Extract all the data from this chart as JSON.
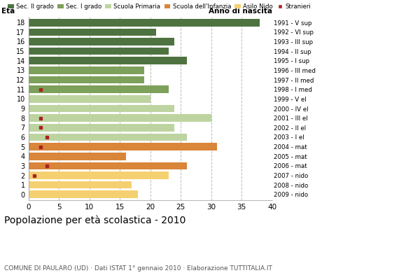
{
  "ages": [
    18,
    17,
    16,
    15,
    14,
    13,
    12,
    11,
    10,
    9,
    8,
    7,
    6,
    5,
    4,
    3,
    2,
    1,
    0
  ],
  "anni_nascita": [
    "1991 - V sup",
    "1992 - VI sup",
    "1993 - III sup",
    "1994 - II sup",
    "1995 - I sup",
    "1996 - III med",
    "1997 - II med",
    "1998 - I med",
    "1999 - V el",
    "2000 - IV el",
    "2001 - III el",
    "2002 - II el",
    "2003 - I el",
    "2004 - mat",
    "2005 - mat",
    "2006 - mat",
    "2007 - nido",
    "2008 - nido",
    "2009 - nido"
  ],
  "bar_values": [
    38,
    21,
    24,
    23,
    26,
    19,
    19,
    23,
    20,
    24,
    30,
    24,
    26,
    31,
    16,
    26,
    23,
    17,
    18
  ],
  "stranieri": [
    0,
    0,
    0,
    0,
    0,
    0,
    0,
    2,
    0,
    0,
    2,
    2,
    3,
    2,
    0,
    3,
    1,
    0,
    0
  ],
  "bar_colors": [
    "#4e7340",
    "#4e7340",
    "#4e7340",
    "#4e7340",
    "#4e7340",
    "#7da05a",
    "#7da05a",
    "#7da05a",
    "#bdd4a0",
    "#bdd4a0",
    "#bdd4a0",
    "#bdd4a0",
    "#bdd4a0",
    "#d9853a",
    "#d9853a",
    "#d9853a",
    "#f5d070",
    "#f5d070",
    "#f5d070"
  ],
  "legend_labels": [
    "Sec. II grado",
    "Sec. I grado",
    "Scuola Primaria",
    "Scuola dell'Infanzia",
    "Asilo Nido",
    "Stranieri"
  ],
  "legend_colors": [
    "#4e7340",
    "#7da05a",
    "#bdd4a0",
    "#d9853a",
    "#f5d070",
    "#aa2222"
  ],
  "title": "Popolazione per età scolastica - 2010",
  "subtitle": "COMUNE DI PAULARO (UD) · Dati ISTAT 1° gennaio 2010 · Elaborazione TUTTITALIA.IT",
  "label_eta": "Età",
  "label_anno": "Anno di nascita",
  "xlim": [
    0,
    40
  ],
  "xticks": [
    0,
    5,
    10,
    15,
    20,
    25,
    30,
    35,
    40
  ],
  "stranieri_color": "#aa2222",
  "bg_color": "#ffffff",
  "grid_color": "#bbbbbb",
  "bar_height": 0.78
}
